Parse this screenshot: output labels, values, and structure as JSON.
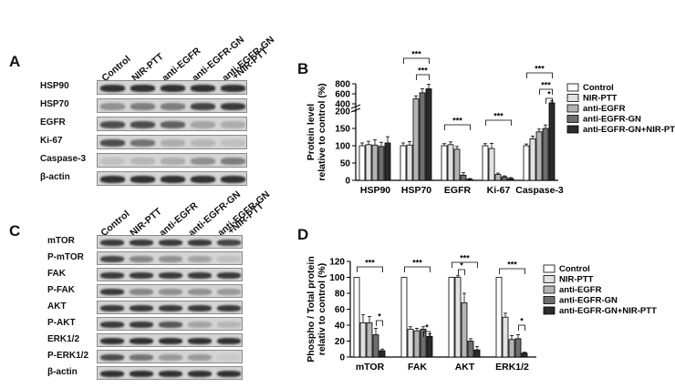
{
  "panel_a": {
    "letter": "A",
    "lanes": [
      "Control",
      "NIR-PTT",
      "anti-EGFR",
      "anti-EGFR-GN",
      "anti-EGFR-GN\n+NIR-PTT"
    ],
    "rows": [
      {
        "label": "HSP90",
        "intensity": [
          0.85,
          0.85,
          0.85,
          0.85,
          0.85
        ]
      },
      {
        "label": "HSP70",
        "intensity": [
          0.35,
          0.45,
          0.45,
          0.75,
          0.8
        ]
      },
      {
        "label": "EGFR",
        "intensity": [
          0.7,
          0.7,
          0.6,
          0.25,
          0.2
        ]
      },
      {
        "label": "Ki-67",
        "intensity": [
          0.7,
          0.5,
          0.2,
          0.15,
          0.1
        ]
      },
      {
        "label": "Caspase-3",
        "intensity": [
          0.1,
          0.15,
          0.2,
          0.35,
          0.45
        ]
      },
      {
        "label": "β-actin",
        "intensity": [
          0.85,
          0.85,
          0.85,
          0.85,
          0.85
        ]
      }
    ]
  },
  "panel_c": {
    "letter": "C",
    "lanes": [
      "Control",
      "NIR-PTT",
      "anti-EGFR",
      "anti-EGFR-GN",
      "anti-EGFR-GN\n+NIR-PTT"
    ],
    "rows": [
      {
        "label": "mTOR",
        "intensity": [
          0.8,
          0.8,
          0.8,
          0.8,
          0.75
        ]
      },
      {
        "label": "P-mTOR",
        "intensity": [
          0.75,
          0.4,
          0.35,
          0.25,
          0.1
        ]
      },
      {
        "label": "FAK",
        "intensity": [
          0.8,
          0.8,
          0.8,
          0.8,
          0.8
        ]
      },
      {
        "label": "P-FAK",
        "intensity": [
          0.8,
          0.4,
          0.35,
          0.35,
          0.3
        ]
      },
      {
        "label": "AKT",
        "intensity": [
          0.8,
          0.8,
          0.8,
          0.8,
          0.8
        ]
      },
      {
        "label": "P-AKT",
        "intensity": [
          0.8,
          0.8,
          0.65,
          0.25,
          0.15
        ]
      },
      {
        "label": "ERK1/2",
        "intensity": [
          0.85,
          0.85,
          0.85,
          0.85,
          0.85
        ]
      },
      {
        "label": "P-ERK1/2",
        "intensity": [
          0.7,
          0.5,
          0.3,
          0.3,
          0.05
        ]
      },
      {
        "label": "β-actin",
        "intensity": [
          0.85,
          0.85,
          0.85,
          0.85,
          0.85
        ]
      }
    ]
  },
  "chart_data": [
    {
      "type": "bar",
      "panel": "B",
      "ylabel": "Protein level\nrelative to control (%)",
      "categories": [
        "HSP90",
        "HSP70",
        "EGFR",
        "Ki-67",
        "Caspase-3"
      ],
      "y_ticks": [
        "0",
        "50",
        "100",
        "150",
        "200",
        "400",
        "600",
        "800"
      ],
      "y_axis_break": [
        200,
        400
      ],
      "series": [
        {
          "name": "Control",
          "values": [
            100,
            100,
            100,
            100,
            100
          ],
          "errors": [
            8,
            8,
            6,
            6,
            5
          ],
          "color": "#ffffff"
        },
        {
          "name": "NIR-PTT",
          "values": [
            103,
            102,
            103,
            92,
            120
          ],
          "errors": [
            10,
            10,
            8,
            15,
            8
          ],
          "color": "#e2e2e2"
        },
        {
          "name": "anti-EGFR",
          "values": [
            102,
            500,
            90,
            17,
            140
          ],
          "errors": [
            15,
            60,
            8,
            4,
            8
          ],
          "color": "#b4b4b4"
        },
        {
          "name": "anti-EGFR-GN",
          "values": [
            98,
            620,
            15,
            10,
            150
          ],
          "errors": [
            12,
            80,
            7,
            3,
            10
          ],
          "color": "#6e6e6e"
        },
        {
          "name": "anti-EGFR-GN+NIR-PTT",
          "values": [
            108,
            700,
            3,
            5,
            420
          ],
          "errors": [
            18,
            90,
            2,
            3,
            40
          ],
          "color": "#2b2b2b"
        }
      ],
      "significance": [
        "***",
        "***",
        "***",
        "***",
        "***",
        "***",
        "*"
      ]
    },
    {
      "type": "bar",
      "panel": "D",
      "ylabel": "Phospho / Total protein\nrelativ to control (%)",
      "categories": [
        "mTOR",
        "FAK",
        "AKT",
        "ERK1/2"
      ],
      "y_ticks": [
        "0",
        "20",
        "40",
        "60",
        "80",
        "100",
        "120"
      ],
      "ylim": [
        0,
        120
      ],
      "series": [
        {
          "name": "Control",
          "values": [
            100,
            100,
            100,
            100
          ],
          "errors": [
            0,
            0,
            0,
            0
          ],
          "color": "#ffffff"
        },
        {
          "name": "NIR-PTT",
          "values": [
            43,
            35,
            100,
            50
          ],
          "errors": [
            10,
            3,
            2,
            5
          ],
          "color": "#e2e2e2"
        },
        {
          "name": "anti-EGFR",
          "values": [
            43,
            33,
            68,
            22
          ],
          "errors": [
            8,
            3,
            12,
            5
          ],
          "color": "#b4b4b4"
        },
        {
          "name": "anti-EGFR-GN",
          "values": [
            28,
            35,
            20,
            23
          ],
          "errors": [
            8,
            3,
            3,
            5
          ],
          "color": "#6e6e6e"
        },
        {
          "name": "anti-EGFR-GN+NIR-PTT",
          "values": [
            8,
            26,
            9,
            5
          ],
          "errors": [
            2,
            3,
            4,
            1
          ],
          "color": "#2b2b2b"
        }
      ],
      "significance": [
        "***",
        "*",
        "***",
        "*",
        "***",
        "*",
        "***",
        "*"
      ]
    }
  ]
}
